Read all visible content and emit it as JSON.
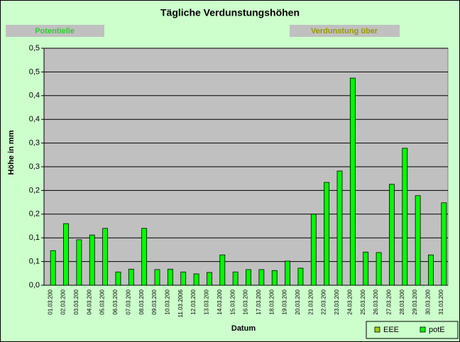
{
  "chart_data": {
    "type": "bar",
    "title": "Tägliche Verdunstungshöhen",
    "annotations": [
      "Potentielle",
      "Verdunstung über"
    ],
    "ylabel": "Höhe in mm",
    "xlabel": "Datum",
    "categories": [
      "01.03.200",
      "02.03.200",
      "03.03.200",
      "04.03.200",
      "05.03.200",
      "06.03.200",
      "07.03.200",
      "08.03.200",
      "09.03.200",
      "10.03.200",
      "11.03.2006",
      "12.03.200",
      "13.03.200",
      "14.03.200",
      "15.03.200",
      "16.03.200",
      "17.03.200",
      "18.03.200",
      "19.03.200",
      "20.03.200",
      "21.03.200",
      "22.03.200",
      "23.03.200",
      "24.03.200",
      "25.03.200",
      "26.03.200",
      "27.03.200",
      "28.03.200",
      "29.03.200",
      "30.03.200",
      "31.03.200"
    ],
    "series": [
      {
        "name": "EEE",
        "color": "#99cc00",
        "values": [
          null,
          null,
          null,
          null,
          null,
          null,
          null,
          null,
          null,
          null,
          null,
          null,
          null,
          null,
          null,
          null,
          null,
          null,
          null,
          null,
          null,
          null,
          null,
          null,
          null,
          null,
          null,
          null,
          null,
          null,
          null
        ]
      },
      {
        "name": "potE",
        "color": "#00ff00",
        "values": [
          0.073,
          0.13,
          0.096,
          0.106,
          0.12,
          0.028,
          0.034,
          0.12,
          0.033,
          0.034,
          0.028,
          0.024,
          0.027,
          0.064,
          0.028,
          0.033,
          0.033,
          0.031,
          0.051,
          0.036,
          0.15,
          0.217,
          0.241,
          0.437,
          0.07,
          0.069,
          0.213,
          0.289,
          0.189,
          0.064,
          0.174
        ]
      }
    ],
    "ylim": [
      0,
      0.5
    ],
    "yticks": [
      {
        "value": 0,
        "label": "0,0"
      },
      {
        "value": 0.05,
        "label": "0,1"
      },
      {
        "value": 0.1,
        "label": "0,1"
      },
      {
        "value": 0.15,
        "label": "0,2"
      },
      {
        "value": 0.2,
        "label": "0,2"
      },
      {
        "value": 0.25,
        "label": "0,3"
      },
      {
        "value": 0.3,
        "label": "0,3"
      },
      {
        "value": 0.35,
        "label": "0,4"
      },
      {
        "value": 0.4,
        "label": "0,4"
      },
      {
        "value": 0.45,
        "label": "0,5"
      },
      {
        "value": 0.5,
        "label": "0,5"
      }
    ],
    "grid": true
  }
}
